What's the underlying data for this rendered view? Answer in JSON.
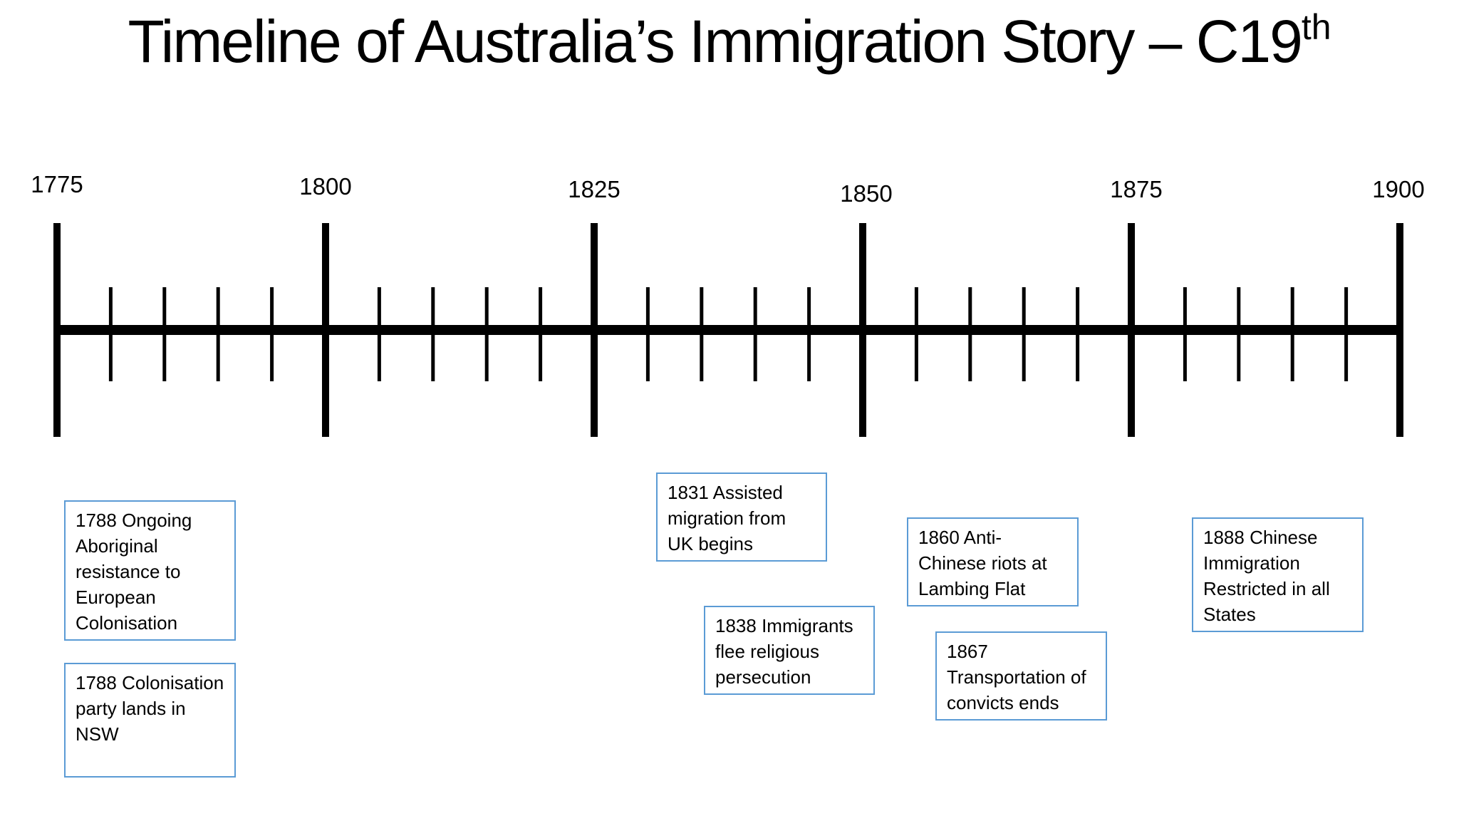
{
  "title": {
    "main": "Timeline of Australia’s Immigration Story – C19",
    "superscript": "th"
  },
  "timeline": {
    "start_year": 1775,
    "end_year": 1900,
    "major_years": [
      "1775",
      "1800",
      "1825",
      "1850",
      "1875",
      "1900"
    ],
    "minor_step": 5,
    "line_color": "#000000"
  },
  "events": [
    {
      "text": "1788 Ongoing Aboriginal resistance to European Colonisation"
    },
    {
      "text": "1788 Colonisation party lands in NSW"
    },
    {
      "text": "1831 Assisted migration from UK begins"
    },
    {
      "text": "1838 Immigrants flee religious persecution"
    },
    {
      "text": "1860 Anti-Chinese riots at Lambing Flat"
    },
    {
      "text": "1867 Transportation of convicts ends"
    },
    {
      "text": "1888 Chinese Immigration Restricted in all States"
    }
  ],
  "box_border_color": "#5b9bd5"
}
